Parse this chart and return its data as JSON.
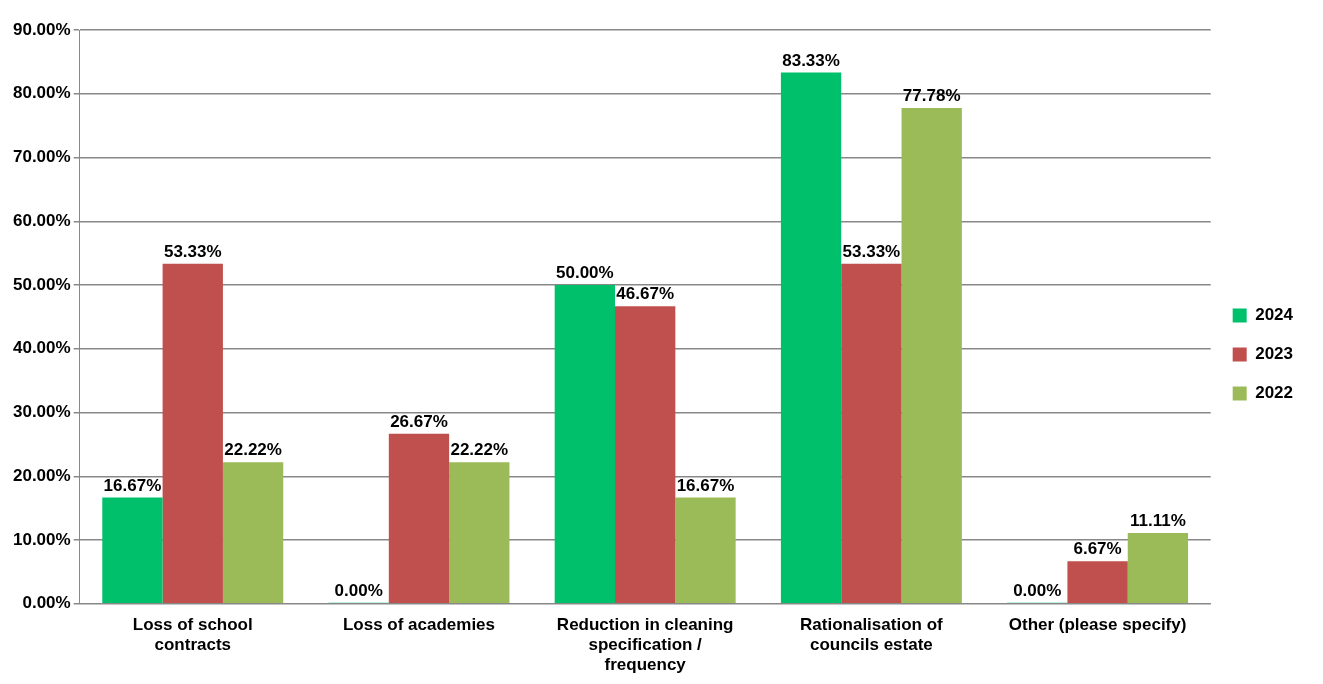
{
  "chart_data": {
    "type": "bar",
    "categories": [
      "Loss of school contracts",
      "Loss of academies",
      "Reduction in cleaning specification / frequency",
      "Rationalisation of councils estate",
      "Other (please specify)"
    ],
    "series": [
      {
        "name": "2024",
        "color": "#00c06b",
        "values": [
          16.67,
          0,
          50,
          83.33,
          0
        ],
        "value_labels": [
          "16.67%",
          "0.00%",
          "50.00%",
          "83.33%",
          "0.00%"
        ]
      },
      {
        "name": "2023",
        "color": "#c0504d",
        "values": [
          53.33,
          26.67,
          46.67,
          53.33,
          6.67
        ],
        "value_labels": [
          "53.33%",
          "26.67%",
          "46.67%",
          "53.33%",
          "6.67%"
        ]
      },
      {
        "name": "2022",
        "color": "#9bbb59",
        "values": [
          22.22,
          22.22,
          16.67,
          77.78,
          11.11
        ],
        "value_labels": [
          "22.22%",
          "22.22%",
          "16.67%",
          "77.78%",
          "11.11%"
        ]
      }
    ],
    "ylim": [
      0,
      90
    ],
    "yticks": [
      {
        "value": 0,
        "label": "0.00%"
      },
      {
        "value": 10,
        "label": "10.00%"
      },
      {
        "value": 20,
        "label": "20.00%"
      },
      {
        "value": 30,
        "label": "30.00%"
      },
      {
        "value": 40,
        "label": "40.00%"
      },
      {
        "value": 50,
        "label": "50.00%"
      },
      {
        "value": 60,
        "label": "60.00%"
      },
      {
        "value": 70,
        "label": "70.00%"
      },
      {
        "value": 80,
        "label": "80.00%"
      },
      {
        "value": 90,
        "label": "90.00%"
      }
    ],
    "grid": "y",
    "legend": "right"
  }
}
